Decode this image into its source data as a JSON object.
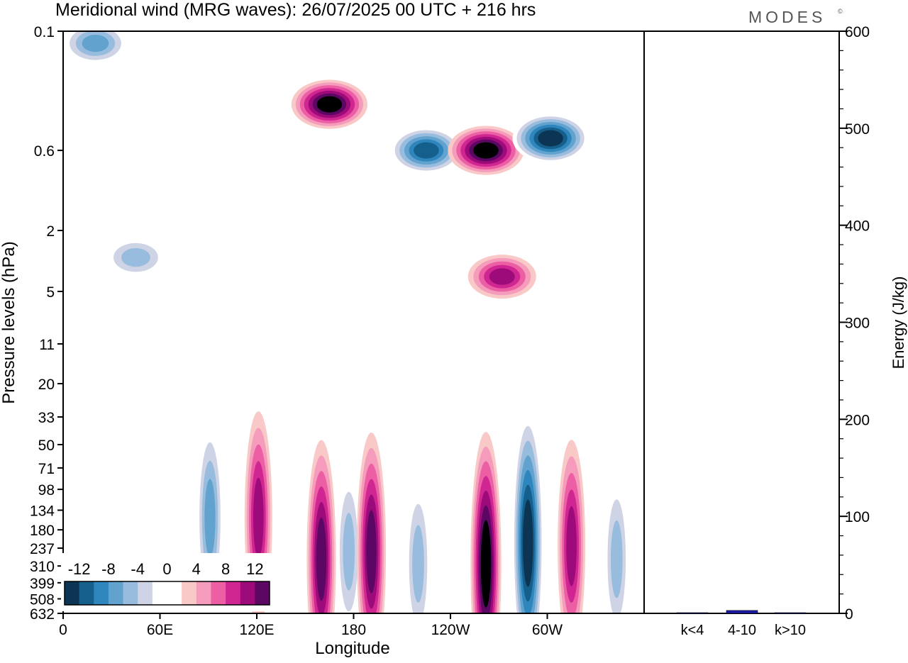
{
  "header": {
    "title": "Meridional wind (MRG waves):  26/07/2025  00 UTC  + 216 hrs",
    "brand": "MODES",
    "brand_mark": "©"
  },
  "chart_data": [
    {
      "type": "heatmap",
      "title": "Meridional wind (MRG waves):  26/07/2025  00 UTC  + 216 hrs",
      "xlabel": "Longitude",
      "ylabel": "Pressure levels (hPa)",
      "x_ticks": [
        "0",
        "60E",
        "120E",
        "180",
        "120W",
        "60W"
      ],
      "x_range": [
        "0",
        "360"
      ],
      "y_ticks": [
        "0.1",
        "0.6",
        "2",
        "5",
        "11",
        "20",
        "33",
        "50",
        "71",
        "98",
        "134",
        "180",
        "237",
        "310",
        "399",
        "508",
        "632"
      ],
      "y_scale": "log (pressure), top = 0.1 hPa, bottom = 632 hPa",
      "colorbar": {
        "labels": [
          "-12",
          "-8",
          "-4",
          "0",
          "4",
          "8",
          "12"
        ],
        "levels": [
          -14,
          -12,
          -10,
          -8,
          -6,
          -4,
          -2,
          0,
          2,
          4,
          6,
          8,
          10,
          12,
          14
        ],
        "colors": [
          "#0b3552",
          "#145f8c",
          "#2f86bd",
          "#62a2cf",
          "#97bcdd",
          "#cfd3e6",
          "#ffffff",
          "#ffffff",
          "#f9c9c7",
          "#f59bbb",
          "#ec5fa4",
          "#cf2692",
          "#9c0b79",
          "#5c0764"
        ]
      },
      "features": [
        {
          "kind": "negative",
          "lon": 20,
          "p": 0.12,
          "peak": -8
        },
        {
          "kind": "negative",
          "lon": 45,
          "p": 3.0,
          "peak": -6
        },
        {
          "kind": "positive",
          "lon": 165,
          "p": 0.3,
          "peak": 14
        },
        {
          "kind": "negative",
          "lon": 225,
          "p": 0.6,
          "peak": -12
        },
        {
          "kind": "positive",
          "lon": 262,
          "p": 0.6,
          "peak": 14
        },
        {
          "kind": "positive",
          "lon": 272,
          "p": 4.0,
          "peak": 10
        },
        {
          "kind": "negative",
          "lon": 302,
          "p": 0.5,
          "peak": -14
        },
        {
          "kind": "negative",
          "lon": 91,
          "p": 150,
          "peak": -8
        },
        {
          "kind": "positive",
          "lon": 121,
          "p": 150,
          "peak": 10
        },
        {
          "kind": "positive",
          "lon": 160,
          "p": 280,
          "peak": 12
        },
        {
          "kind": "negative",
          "lon": 177,
          "p": 250,
          "peak": -6
        },
        {
          "kind": "positive",
          "lon": 191,
          "p": 250,
          "peak": 12
        },
        {
          "kind": "negative",
          "lon": 220,
          "p": 300,
          "peak": -6
        },
        {
          "kind": "positive",
          "lon": 262,
          "p": 300,
          "peak": 14
        },
        {
          "kind": "negative",
          "lon": 288,
          "p": 220,
          "peak": -14
        },
        {
          "kind": "positive",
          "lon": 315,
          "p": 230,
          "peak": 10
        },
        {
          "kind": "negative",
          "lon": 343,
          "p": 280,
          "peak": -6
        }
      ]
    },
    {
      "type": "bar",
      "ylabel": "Energy (J/kg)",
      "categories": [
        "k<4",
        "4-10",
        "k>10"
      ],
      "values": [
        0.5,
        3,
        0.5
      ],
      "y_ticks": [
        "0",
        "100",
        "200",
        "300",
        "400",
        "500",
        "600"
      ],
      "ylim": [
        0,
        600
      ],
      "bar_color": "#1a1aa6"
    }
  ]
}
